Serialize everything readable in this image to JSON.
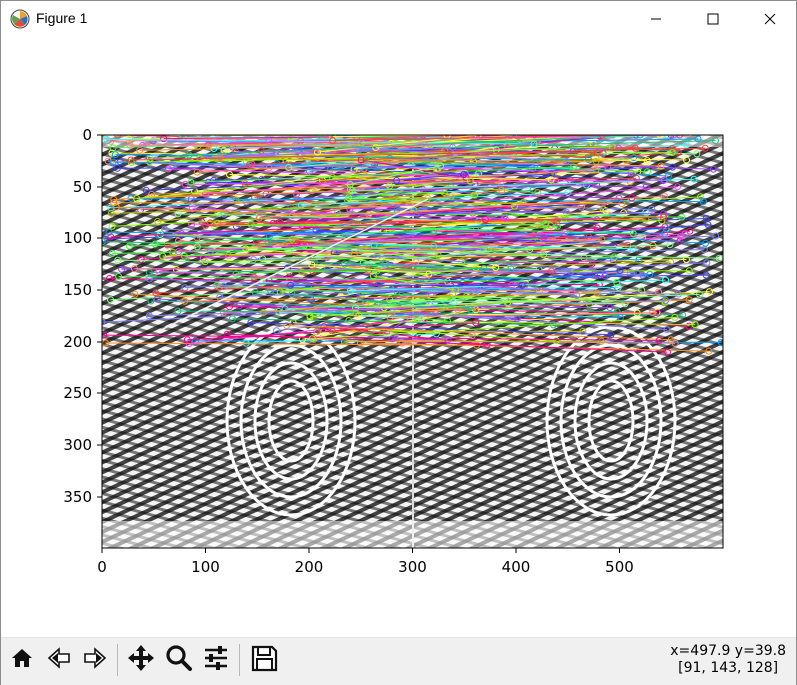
{
  "window": {
    "title": "Figure 1"
  },
  "icons": {
    "app": "matplotlib-figure-icon",
    "minimize": "minimize-icon",
    "maximize": "maximize-icon",
    "close": "close-icon",
    "home": "home-icon",
    "back": "back-arrow-icon",
    "forward": "forward-arrow-icon",
    "pan": "pan-move-icon",
    "zoom": "zoom-magnifier-icon",
    "configure": "configure-subplots-icon",
    "save": "save-floppy-icon"
  },
  "plot": {
    "x_ticks": [
      "0",
      "100",
      "200",
      "300",
      "400",
      "500"
    ],
    "y_ticks": [
      "0",
      "50",
      "100",
      "150",
      "200",
      "250",
      "300",
      "350"
    ]
  },
  "status": {
    "coords": "x=497.9 y=39.8",
    "pixel": "[91, 143, 128]"
  },
  "chart_data": {
    "type": "other",
    "description_free": "",
    "xlim": [
      0,
      600
    ],
    "ylim": [
      400,
      0
    ],
    "x_ticks": [
      0,
      100,
      200,
      300,
      400,
      500
    ],
    "y_ticks": [
      0,
      50,
      100,
      150,
      200,
      250,
      300,
      350
    ]
  }
}
